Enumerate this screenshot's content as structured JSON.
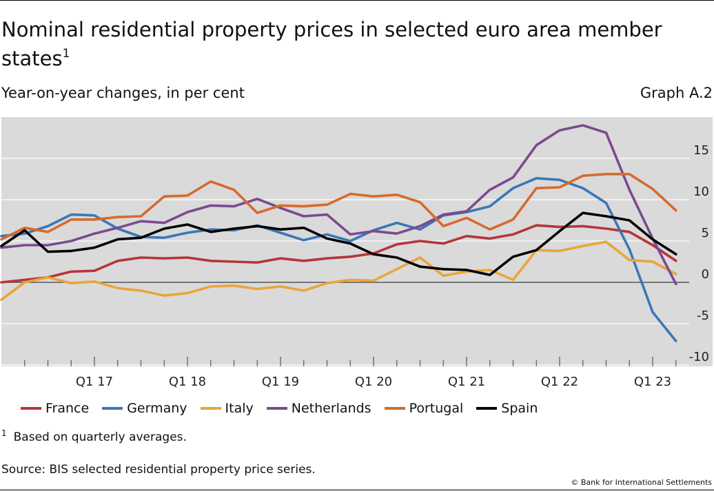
{
  "header": {
    "title": "Nominal residential property prices in selected euro area member states",
    "title_footnote_marker": "1",
    "subtitle": "Year-on-year changes, in per cent",
    "graph_id": "Graph A.2"
  },
  "footnotes": [
    {
      "marker": "1",
      "text": "Based on quarterly averages."
    }
  ],
  "source": "Source: BIS selected residential property price series.",
  "copyright": "© Bank for International Settlements",
  "chart_data": {
    "type": "line",
    "x": [
      "Q1 16",
      "Q2 16",
      "Q3 16",
      "Q4 16",
      "Q1 17",
      "Q2 17",
      "Q3 17",
      "Q4 17",
      "Q1 18",
      "Q2 18",
      "Q3 18",
      "Q4 18",
      "Q1 19",
      "Q2 19",
      "Q3 19",
      "Q4 19",
      "Q1 20",
      "Q2 20",
      "Q3 20",
      "Q4 20",
      "Q1 21",
      "Q2 21",
      "Q3 21",
      "Q4 21",
      "Q1 22",
      "Q2 22",
      "Q3 22",
      "Q4 22",
      "Q1 23",
      "Q2 23"
    ],
    "x_tick_labels": [
      "Q1 17",
      "Q1 18",
      "Q1 19",
      "Q1 20",
      "Q1 21",
      "Q1 22",
      "Q1 23"
    ],
    "y_ticks": [
      15,
      10,
      5,
      0,
      -5,
      -10
    ],
    "ylim": [
      -10.2,
      20
    ],
    "grid": "horizontal",
    "y_axis_position": "right",
    "legend_position": "bottom",
    "background_color": "#dadada",
    "series": [
      {
        "name": "France",
        "color": "#b5363a",
        "values": [
          0,
          0.3,
          0.6,
          1.3,
          1.4,
          2.6,
          3.0,
          2.9,
          3.0,
          2.6,
          2.5,
          2.4,
          2.9,
          2.6,
          2.9,
          3.1,
          3.5,
          4.6,
          5.0,
          4.7,
          5.6,
          5.3,
          5.8,
          6.9,
          6.7,
          6.8,
          6.5,
          6.1,
          4.5,
          2.6
        ]
      },
      {
        "name": "Germany",
        "color": "#3b77b6",
        "values": [
          5.6,
          5.9,
          6.8,
          8.2,
          8.1,
          6.5,
          5.5,
          5.4,
          6.0,
          6.4,
          6.3,
          6.9,
          6.0,
          5.1,
          5.8,
          5.0,
          6.3,
          7.2,
          6.4,
          8.1,
          8.5,
          9.2,
          11.4,
          12.6,
          12.4,
          11.4,
          9.6,
          4.0,
          -3.6,
          -7.1
        ]
      },
      {
        "name": "Italy",
        "color": "#e9a53a",
        "values": [
          -2.1,
          0,
          0.6,
          -0.1,
          0.1,
          -0.7,
          -1.0,
          -1.6,
          -1.3,
          -0.5,
          -0.4,
          -0.8,
          -0.5,
          -1.0,
          -0.1,
          0.3,
          0.2,
          1.6,
          3.0,
          0.8,
          1.3,
          1.5,
          0.3,
          3.9,
          3.8,
          4.4,
          4.9,
          2.7,
          2.5,
          1.0
        ]
      },
      {
        "name": "Netherlands",
        "color": "#7b4a8e",
        "values": [
          4.2,
          4.5,
          4.5,
          5.0,
          5.9,
          6.6,
          7.4,
          7.2,
          8.5,
          9.3,
          9.2,
          10.1,
          9.0,
          8.0,
          8.2,
          5.8,
          6.2,
          5.9,
          6.8,
          8.2,
          8.6,
          11.2,
          12.7,
          16.6,
          18.4,
          19.0,
          18.1,
          11.2,
          5.3,
          -0.2
        ]
      },
      {
        "name": "Portugal",
        "color": "#d66a2c",
        "values": [
          5.2,
          6.6,
          6.1,
          7.6,
          7.6,
          7.9,
          8.0,
          10.4,
          10.5,
          12.2,
          11.2,
          8.4,
          9.3,
          9.2,
          9.4,
          10.7,
          10.4,
          10.6,
          9.7,
          6.8,
          7.8,
          6.4,
          7.6,
          11.4,
          11.5,
          12.9,
          13.1,
          13.1,
          11.3,
          8.7
        ]
      },
      {
        "name": "Spain",
        "color": "#000000",
        "values": [
          4.4,
          6.3,
          3.7,
          3.8,
          4.2,
          5.2,
          5.4,
          6.5,
          7.0,
          6.1,
          6.5,
          6.8,
          6.4,
          6.6,
          5.3,
          4.7,
          3.4,
          3.0,
          1.9,
          1.6,
          1.5,
          0.9,
          3.1,
          3.9,
          6.2,
          8.4,
          8.0,
          7.5,
          5.2,
          3.4
        ]
      }
    ]
  }
}
